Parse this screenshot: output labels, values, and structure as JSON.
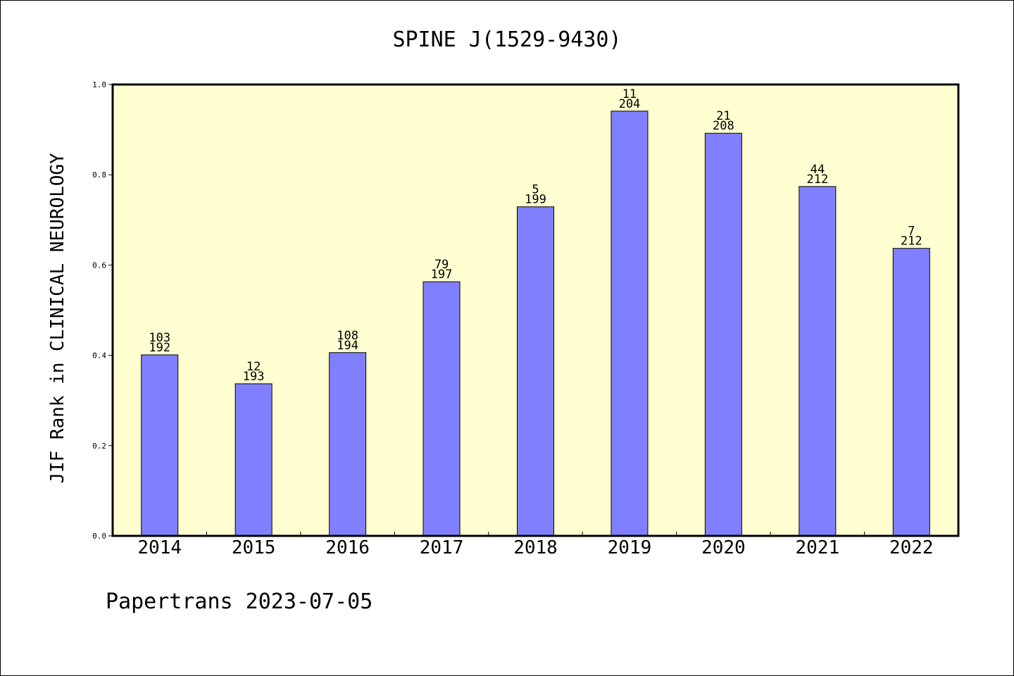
{
  "chart_data": {
    "type": "bar",
    "title": "SPINE J(1529-9430)",
    "ylabel": "JIF Rank in CLINICAL NEUROLOGY",
    "xlabel": "",
    "ylim": [
      0,
      1.0
    ],
    "yticks": [
      "0.0",
      "0.2",
      "0.4",
      "0.6",
      "0.8",
      "1.0"
    ],
    "categories": [
      "2014",
      "2015",
      "2016",
      "2017",
      "2018",
      "2019",
      "2020",
      "2021",
      "2022"
    ],
    "values": [
      0.401,
      0.337,
      0.406,
      0.563,
      0.729,
      0.941,
      0.892,
      0.774,
      0.637
    ],
    "rank": [
      "103",
      "12",
      "108",
      "79",
      "5",
      "11",
      "21",
      "44",
      "7"
    ],
    "total": [
      "192",
      "193",
      "194",
      "197",
      "199",
      "204",
      "208",
      "212",
      "212"
    ],
    "plot_background": "#ffffd2",
    "bar_color": "#8080ff",
    "grid": false
  },
  "footer": "Papertrans 2023-07-05"
}
